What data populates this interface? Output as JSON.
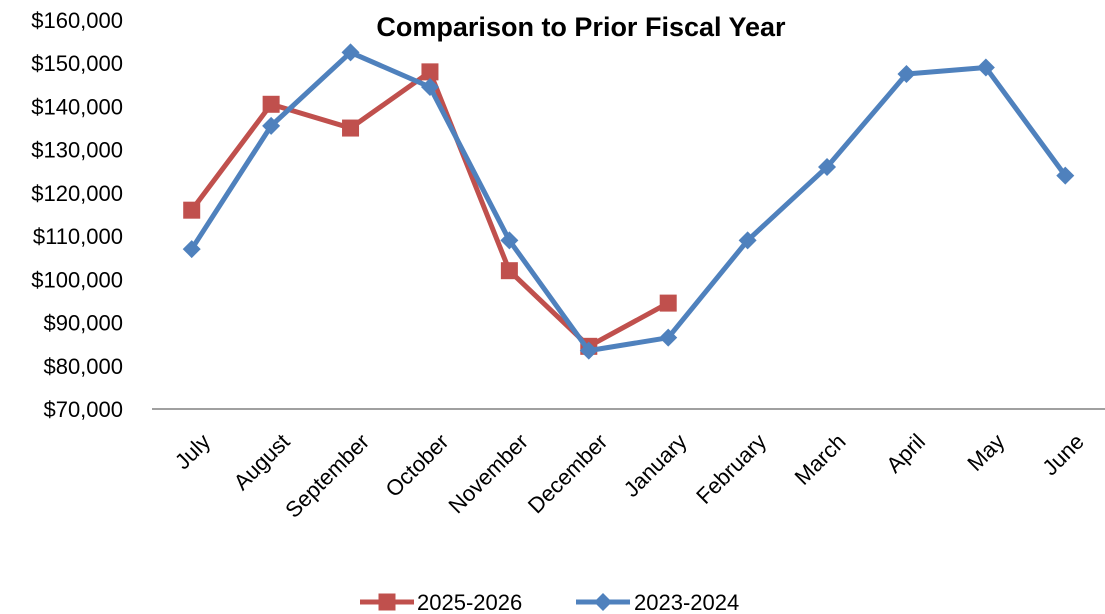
{
  "chart_data": {
    "type": "line",
    "title": "Comparison to Prior Fiscal Year",
    "xlabel": "",
    "ylabel": "",
    "categories": [
      "July",
      "August",
      "September",
      "October",
      "November",
      "December",
      "January",
      "February",
      "March",
      "April",
      "May",
      "June"
    ],
    "y_tick_labels": [
      "$70,000",
      "$80,000",
      "$90,000",
      "$100,000",
      "$110,000",
      "$120,000",
      "$130,000",
      "$140,000",
      "$150,000",
      "$160,000"
    ],
    "ylim": [
      70000,
      160000
    ],
    "grid": false,
    "legend_position": "bottom",
    "series": [
      {
        "name": "2025-2026",
        "color": "#c0504d",
        "marker": "square",
        "values": [
          116000,
          140500,
          135000,
          148000,
          102000,
          84500,
          94500,
          null,
          null,
          null,
          null,
          null
        ]
      },
      {
        "name": "2023-2024",
        "color": "#4f81bd",
        "marker": "diamond",
        "values": [
          107000,
          135500,
          152500,
          144500,
          109000,
          83500,
          86500,
          109000,
          126000,
          147500,
          149000,
          124000
        ]
      }
    ]
  }
}
